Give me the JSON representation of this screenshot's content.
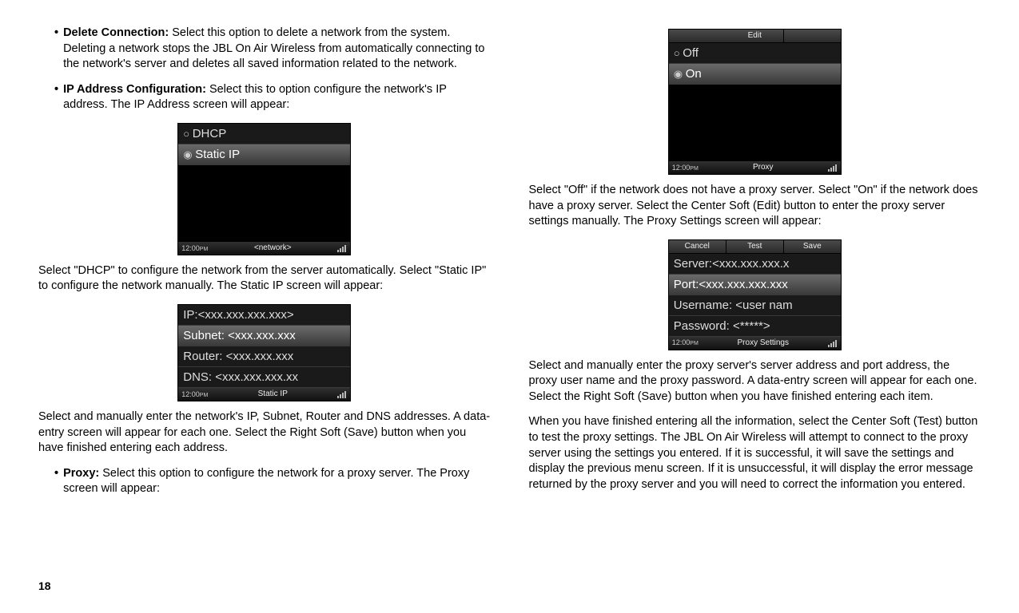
{
  "pageNumber": "18",
  "left": {
    "bullet1": {
      "title": "Delete Connection:",
      "text": " Select this option to delete a network from the system. Deleting a network stops the JBL On Air Wireless from automatically connecting to the network's server and deletes all saved information related to the network."
    },
    "bullet2": {
      "title": "IP Address Configuration:",
      "text": " Select this to option configure the network's IP address. The IP Address screen will appear:"
    },
    "para1": "Select \"DHCP\" to configure the network from the server automatically. Select \"Static IP\" to configure the network manually. The Static IP screen will appear:",
    "para2": "Select and manually enter the network's IP, Subnet, Router and DNS addresses. A data-entry screen will appear for each one. Select the Right Soft (Save) button when you have finished entering each address.",
    "bullet3": {
      "title": "Proxy:",
      "text": " Select this option to configure the network for a proxy server. The Proxy screen will appear:"
    }
  },
  "right": {
    "para1": "Select \"Off\" if the network does not have a proxy server. Select \"On\" if the network does have a proxy server. Select the Center Soft (Edit) button to enter the proxy server settings manually. The Proxy Settings screen will appear:",
    "para2": "Select and manually enter the proxy server's server address and port address, the proxy user name and the proxy password. A data-entry screen will appear for each one. Select the Right Soft (Save) button when you have finished entering each item.",
    "para3": "When you have finished entering all the information, select the Center Soft (Test) button to test the proxy settings. The JBL On Air Wireless will attempt to connect to the proxy server using the settings you entered. If it is successful, it will save the settings and display the previous menu screen. If it is unsuccessful, it will display the error message returned by the proxy server and you will need to correct the information you entered."
  },
  "screens": {
    "time": "12:00",
    "timeSuffix": "PM",
    "ip": {
      "row1": "DHCP",
      "row2": "Static IP",
      "title": "<network>"
    },
    "static": {
      "row1": "IP:<xxx.xxx.xxx.xxx>",
      "row2": "Subnet: <xxx.xxx.xxx",
      "row3": "Router: <xxx.xxx.xxx",
      "row4": "DNS: <xxx.xxx.xxx.xx",
      "title": "Static IP"
    },
    "proxy": {
      "top": "Edit",
      "row1": "Off",
      "row2": "On",
      "title": "Proxy"
    },
    "proxySettings": {
      "btn1": "Cancel",
      "btn2": "Test",
      "btn3": "Save",
      "row1": "Server:<xxx.xxx.xxx.x",
      "row2": "Port:<xxx.xxx.xxx.xxx",
      "row3": "Username: <user nam",
      "row4": "Password: <*****>",
      "title": "Proxy Settings"
    }
  }
}
